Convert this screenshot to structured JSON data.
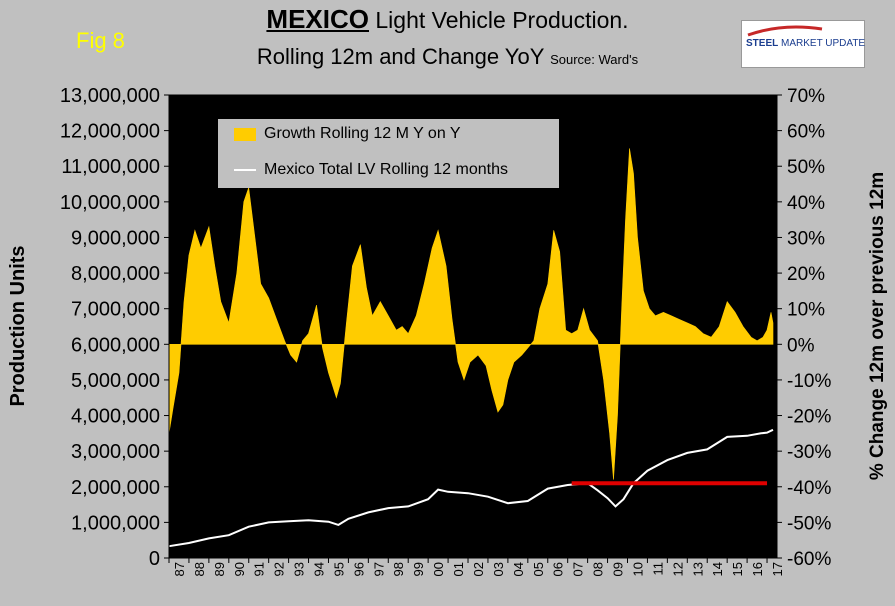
{
  "header": {
    "fig_label": "Fig 8",
    "title_main": "MEXICO",
    "title_rest": " Light Vehicle Production.",
    "subtitle": "Rolling 12m and Change YoY",
    "source": "Source: Ward's"
  },
  "logo": {
    "steel": "STEEL",
    "rest": " MARKET UPDATE"
  },
  "colors": {
    "background": "#c0c0c0",
    "plot": "#000000",
    "growth": "#ffcc00",
    "production": "#ffffff",
    "reference": "#e00000"
  },
  "chart_data": {
    "type": "bar",
    "ylabel_left": "Production Units",
    "ylabel_right": "% Change 12m over previous 12m",
    "ylim_left": [
      0,
      13000000
    ],
    "ylim_right": [
      -60,
      70
    ],
    "yticks_left": [
      "0",
      "1,000,000",
      "2,000,000",
      "3,000,000",
      "4,000,000",
      "5,000,000",
      "6,000,000",
      "7,000,000",
      "8,000,000",
      "9,000,000",
      "10,000,000",
      "11,000,000",
      "12,000,000",
      "13,000,000"
    ],
    "yticks_right": [
      "-60%",
      "-50%",
      "-40%",
      "-30%",
      "-20%",
      "-10%",
      "0%",
      "10%",
      "20%",
      "30%",
      "40%",
      "50%",
      "60%",
      "70%"
    ],
    "xlim": [
      1987,
      2017.5
    ],
    "xticks": [
      "87",
      "88",
      "89",
      "90",
      "91",
      "92",
      "93",
      "94",
      "95",
      "96",
      "97",
      "98",
      "99",
      "00",
      "01",
      "02",
      "03",
      "04",
      "05",
      "06",
      "07",
      "08",
      "09",
      "10",
      "11",
      "12",
      "13",
      "14",
      "15",
      "16",
      "17"
    ],
    "legend": [
      "Growth Rolling 12 M Y on Y",
      "Mexico Total LV Rolling 12 months"
    ],
    "series": [
      {
        "name": "Growth Rolling 12 M Y on Y",
        "axis": "right",
        "kind": "area",
        "x": [
          1987,
          1987.2,
          1987.5,
          1987.75,
          1988,
          1988.3,
          1988.6,
          1989,
          1989.3,
          1989.6,
          1990,
          1990.4,
          1990.75,
          1991,
          1991.2,
          1991.6,
          1992,
          1992.4,
          1992.8,
          1993.1,
          1993.4,
          1993.7,
          1994,
          1994.4,
          1994.7,
          1995,
          1995.4,
          1995.6,
          1995.9,
          1996.2,
          1996.6,
          1996.9,
          1997.2,
          1997.6,
          1998,
          1998.4,
          1998.7,
          1999,
          1999.4,
          1999.8,
          2000.2,
          2000.5,
          2000.9,
          2001.2,
          2001.5,
          2001.8,
          2002.1,
          2002.5,
          2002.9,
          2003.2,
          2003.5,
          2003.75,
          2004,
          2004.3,
          2004.7,
          2005,
          2005.3,
          2005.6,
          2006,
          2006.3,
          2006.6,
          2006.9,
          2007.2,
          2007.5,
          2007.8,
          2008.1,
          2008.5,
          2008.8,
          2009.1,
          2009.3,
          2009.5,
          2009.7,
          2009.9,
          2010.1,
          2010.3,
          2010.5,
          2010.8,
          2011.1,
          2011.4,
          2011.8,
          2012.2,
          2012.6,
          2013,
          2013.4,
          2013.8,
          2014.2,
          2014.6,
          2015,
          2015.4,
          2015.8,
          2016.2,
          2016.5,
          2016.8,
          2017,
          2017.2,
          2017.3
        ],
        "values": [
          -25,
          -18,
          -8,
          12,
          25,
          32,
          27,
          33,
          22,
          12,
          6,
          20,
          40,
          44,
          35,
          17,
          13,
          7,
          1,
          -3,
          -5,
          1,
          3,
          11,
          -1,
          -8,
          -15,
          -11,
          6,
          22,
          28,
          16,
          8,
          12,
          8,
          4,
          5,
          3,
          8,
          17,
          27,
          32,
          22,
          7,
          -5,
          -10,
          -5,
          -3,
          -6,
          -13,
          -19,
          -17,
          -10,
          -5,
          -3,
          -1,
          1,
          10,
          17,
          32,
          26,
          4,
          3,
          4,
          10,
          4,
          1,
          -10,
          -25,
          -38,
          -20,
          9,
          35,
          55,
          48,
          30,
          15,
          10,
          8,
          9,
          8,
          7,
          6,
          5,
          3,
          2,
          5,
          12,
          9,
          5,
          2,
          1,
          2,
          4,
          9,
          6
        ]
      },
      {
        "name": "Mexico Total LV Rolling 12 months",
        "axis": "left",
        "kind": "line",
        "x": [
          1987,
          1988,
          1989,
          1990,
          1991,
          1992,
          1993,
          1994,
          1995,
          1995.5,
          1996,
          1997,
          1998,
          1999,
          2000,
          2000.5,
          2001,
          2002,
          2003,
          2004,
          2005,
          2006,
          2007,
          2008,
          2008.5,
          2009,
          2009.4,
          2009.8,
          2010.3,
          2011,
          2012,
          2013,
          2014,
          2015,
          2016,
          2016.7,
          2017,
          2017.3
        ],
        "values": [
          330000,
          420000,
          550000,
          640000,
          880000,
          1000000,
          1030000,
          1060000,
          1020000,
          930000,
          1100000,
          1280000,
          1400000,
          1450000,
          1650000,
          1920000,
          1860000,
          1820000,
          1720000,
          1540000,
          1600000,
          1950000,
          2050000,
          2100000,
          1900000,
          1680000,
          1450000,
          1650000,
          2100000,
          2450000,
          2750000,
          2950000,
          3050000,
          3400000,
          3430000,
          3500000,
          3520000,
          3600000
        ]
      },
      {
        "name": "reference level",
        "axis": "left",
        "kind": "hline",
        "x": [
          2007.2,
          2017
        ],
        "values": [
          2100000,
          2100000
        ]
      }
    ]
  }
}
